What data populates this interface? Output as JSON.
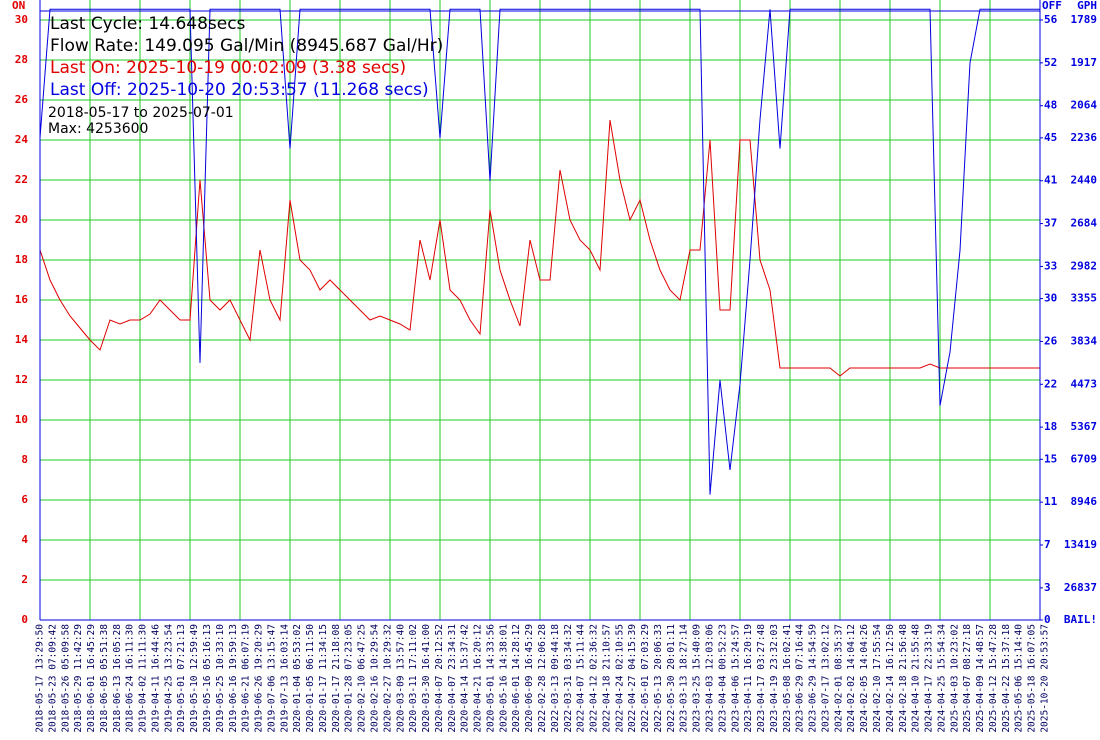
{
  "chart_data": {
    "type": "line",
    "left_header": "ON",
    "right_headers": [
      "OFF",
      "GPH"
    ],
    "info": {
      "last_cycle": "Last Cycle: 14.648secs",
      "flow_rate": "Flow Rate: 149.095 Gal/Min (8945.687 Gal/Hr)",
      "last_on": "Last On: 2025-10-19 00:02:09 (3.38 secs)",
      "last_off": "Last Off: 2025-10-20 20:53:57 (11.268 secs)",
      "range": "2018-05-17 to 2025-07-01",
      "max": "Max: 4253600"
    },
    "ylim": [
      0,
      30
    ],
    "yticks": [
      0,
      2,
      4,
      6,
      8,
      10,
      12,
      14,
      16,
      18,
      20,
      22,
      24,
      26,
      28,
      30
    ],
    "y2lim": [
      0,
      56
    ],
    "y2ticks": [
      0,
      3,
      7,
      11,
      15,
      18,
      22,
      26,
      30,
      33,
      37,
      41,
      45,
      48,
      52,
      56
    ],
    "gph_labels": [
      "BAIL!",
      "26837",
      "13419",
      "8946",
      "6709",
      "5367",
      "4473",
      "3834",
      "3355",
      "2982",
      "2684",
      "2440",
      "2236",
      "2064",
      "1917",
      "1789"
    ],
    "grid": true,
    "x_labels": [
      "2018-05-17 13:29:50",
      "2018-05-23 07:09:42",
      "2018-05-26 05:09:58",
      "2018-05-29 11:42:29",
      "2018-06-01 16:45:29",
      "2018-06-05 05:51:38",
      "2018-06-13 16:05:28",
      "2018-06-24 16:11:30",
      "2019-04-02 11:11:30",
      "2019-04-11 16:44:46",
      "2019-04-25 13:23:54",
      "2019-05-01 07:21:13",
      "2019-05-10 12:59:49",
      "2019-05-16 05:16:13",
      "2019-05-25 10:33:10",
      "2019-06-16 19:59:13",
      "2019-06-21 06:07:19",
      "2019-06-26 19:20:29",
      "2019-07-06 13:15:47",
      "2019-07-13 16:03:14",
      "2020-01-04 05:53:02",
      "2020-01-05 06:11:50",
      "2020-01-17 11:34:15",
      "2020-01-17 21:18:08",
      "2020-01-28 07:23:05",
      "2020-02-10 06:47:25",
      "2020-02-16 10:29:54",
      "2020-02-27 10:29:32",
      "2020-03-09 13:57:40",
      "2020-03-11 17:11:02",
      "2020-03-30 16:41:00",
      "2020-04-07 20:12:52",
      "2020-04-07 23:34:31",
      "2020-04-14 15:37:42",
      "2020-04-21 16:20:12",
      "2020-05-01 14:33:56",
      "2020-05-16 14:38:01",
      "2020-06-01 14:28:12",
      "2020-06-09 16:45:29",
      "2022-02-28 12:06:28",
      "2022-03-13 09:44:18",
      "2022-03-31 03:34:32",
      "2022-04-07 15:11:44",
      "2022-04-12 02:36:32",
      "2022-04-18 21:10:57",
      "2022-04-24 02:10:55",
      "2022-04-27 04:15:39",
      "2022-05-01 07:03:29",
      "2022-05-13 20:06:33",
      "2022-05-30 20:01:11",
      "2023-03-13 18:27:14",
      "2023-03-25 15:40:09",
      "2023-04-03 12:03:06",
      "2023-04-04 00:52:23",
      "2023-04-06 15:24:57",
      "2023-04-11 16:20:19",
      "2023-04-17 03:27:48",
      "2023-04-19 23:32:03",
      "2023-05-08 16:02:41",
      "2023-06-29 07:16:44",
      "2023-06-29 14:54:59",
      "2023-07-17 13:02:12",
      "2024-02-01 08:35:37",
      "2024-02-02 14:04:12",
      "2024-02-05 14:04:26",
      "2024-02-10 17:55:54",
      "2024-02-14 16:12:50",
      "2024-02-18 21:56:48",
      "2024-04-10 21:55:48",
      "2024-04-17 22:33:19",
      "2024-04-25 15:54:34",
      "2025-04-03 10:23:02",
      "2025-04-07 08:27:18",
      "2025-04-09 14:48:57",
      "2025-04-12 15:47:28",
      "2025-04-22 15:37:18",
      "2025-05-06 15:14:40",
      "2025-05-18 16:07:05",
      "2025-10-20 20:53:57"
    ],
    "series": [
      {
        "name": "ON",
        "color": "#e00000",
        "axis": "y",
        "values": [
          18.5,
          17,
          16,
          15.2,
          14.6,
          14,
          13.5,
          15,
          14.8,
          15,
          15,
          15.3,
          16,
          15.5,
          15,
          15,
          22,
          16,
          15.5,
          16,
          15,
          14,
          18.5,
          16,
          15,
          21,
          18,
          17.5,
          16.5,
          17,
          16.5,
          16,
          15.5,
          15,
          15.2,
          15,
          14.8,
          14.5,
          19,
          17,
          20,
          16.5,
          16,
          15,
          14.3,
          20.5,
          17.5,
          16,
          14.7,
          19,
          17,
          17,
          22.5,
          20,
          19,
          18.5,
          17.5,
          25,
          22,
          20,
          21,
          19,
          17.5,
          16.5,
          16,
          18.5,
          18.5,
          24,
          15.5,
          15.5,
          24,
          24,
          18,
          16.5,
          12.6,
          12.6,
          12.6,
          12.6,
          12.6,
          12.6,
          12.2,
          12.6,
          12.6,
          12.6,
          12.6,
          12.6,
          12.6,
          12.6,
          12.6,
          12.8,
          12.6,
          12.6,
          12.6,
          12.6,
          12.6,
          12.6,
          12.6,
          12.6,
          12.6,
          12.6,
          12.6
        ]
      },
      {
        "name": "OFF",
        "color": "#0000e0",
        "axis": "y2",
        "values": [
          45,
          57,
          57,
          57,
          57,
          57,
          57,
          57,
          57,
          57,
          57,
          57,
          57,
          57,
          57,
          57,
          24,
          57,
          57,
          57,
          57,
          57,
          57,
          57,
          57,
          44,
          57,
          57,
          57,
          57,
          57,
          57,
          57,
          57,
          57,
          57,
          57,
          57,
          57,
          57,
          45,
          57,
          57,
          57,
          57,
          41,
          57,
          57,
          57,
          57,
          57,
          57,
          57,
          57,
          57,
          57,
          57,
          57,
          57,
          57,
          57,
          57,
          57,
          57,
          57,
          57,
          57,
          11.7,
          22.4,
          14,
          22,
          33.6,
          46.7,
          57,
          44,
          57,
          57,
          57,
          57,
          57,
          57,
          57,
          57,
          57,
          57,
          57,
          57,
          57,
          57,
          57,
          20,
          25,
          34.5,
          52,
          57,
          57,
          57,
          57,
          57,
          57,
          57
        ]
      }
    ]
  }
}
